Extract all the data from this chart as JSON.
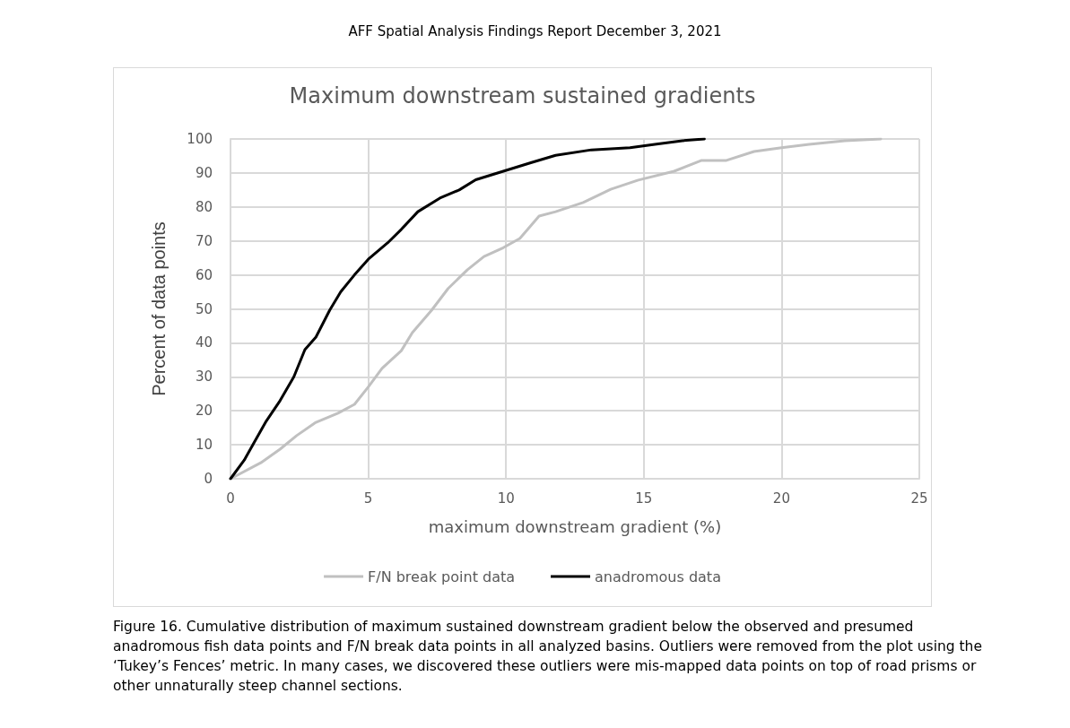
{
  "chart_data": {
    "type": "line",
    "title": "Maximum downstream sustained gradients",
    "xlabel": "maximum downstream gradient (%)",
    "ylabel": "Percent of data points",
    "annotations": [
      "AFF Spatial Analysis Findings Report December 3, 2021",
      "Figure 16. Cumulative distribution of maximum sustained downstream gradient below the observed and presumed anadromous fish data points and F/N break data points in all analyzed basins. Outliers were removed from the plot using the ‘Tukey’s Fences’ metric. In many cases, we discovered these outliers were mis-mapped data points on top of road prisms or other unnaturally steep channel sections."
    ],
    "series": [
      {
        "name": "F/N break point data",
        "color": "#c0c0c0",
        "x": [
          0,
          1.1,
          1.8,
          2.4,
          3.1,
          3.9,
          4.5,
          5,
          5.5,
          6.2,
          6.6,
          7.3,
          7.9,
          8.6,
          9.2,
          9.9,
          10.5,
          11.2,
          11.8,
          12.8,
          13.8,
          14.8,
          16.1,
          17.1,
          18,
          19,
          20,
          21,
          22.3,
          23.6
        ],
        "values": [
          0,
          4.7,
          8.7,
          12.7,
          16.6,
          19.3,
          21.9,
          27,
          32.5,
          37.7,
          43,
          49.6,
          56,
          61.5,
          65.4,
          68,
          70.7,
          77.3,
          78.6,
          81.3,
          85.2,
          87.9,
          90.5,
          93.7,
          93.7,
          96.3,
          97.4,
          98.4,
          99.5,
          100
        ]
      },
      {
        "name": "anadromous data",
        "color": "#000000",
        "x": [
          0,
          0.5,
          0.9,
          1.3,
          1.8,
          2.3,
          2.7,
          3.1,
          3.6,
          4,
          4.5,
          5,
          5.7,
          6.2,
          6.8,
          7.6,
          8.3,
          8.9,
          9.9,
          10.9,
          11.8,
          13.1,
          14.5,
          15.4,
          16.4,
          17.2
        ],
        "values": [
          0,
          5.5,
          11.3,
          17,
          23,
          30,
          38,
          41.7,
          49.6,
          55,
          60,
          64.6,
          69.4,
          73.4,
          78.6,
          82.6,
          85,
          88,
          90.5,
          93,
          95.2,
          96.8,
          97.4,
          98.4,
          99.5,
          100
        ]
      }
    ],
    "xlim": [
      0,
      25
    ],
    "xticks": [
      0,
      5,
      10,
      15,
      20,
      25
    ],
    "ylim": [
      0,
      100
    ],
    "yticks": [
      0,
      10,
      20,
      30,
      40,
      50,
      60,
      70,
      80,
      90,
      100
    ],
    "grid": true,
    "legend": "bottom",
    "marker": "none",
    "line_style": "solid"
  }
}
